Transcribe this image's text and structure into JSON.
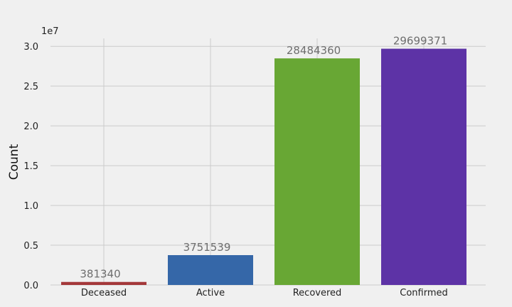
{
  "chart_data": {
    "type": "bar",
    "categories": [
      "Deceased",
      "Active",
      "Recovered",
      "Confirmed"
    ],
    "values": [
      381340,
      3751539,
      28484360,
      29699371
    ],
    "colors": [
      "#a4383a",
      "#3567a8",
      "#68a734",
      "#5d33a6"
    ],
    "ylabel": "Count",
    "y_multiplier": "1e7",
    "yticks": [
      "0.0",
      "0.5",
      "1.0",
      "1.5",
      "2.0",
      "2.5",
      "3.0"
    ],
    "ylim": [
      0,
      31000000
    ],
    "grid": true
  }
}
